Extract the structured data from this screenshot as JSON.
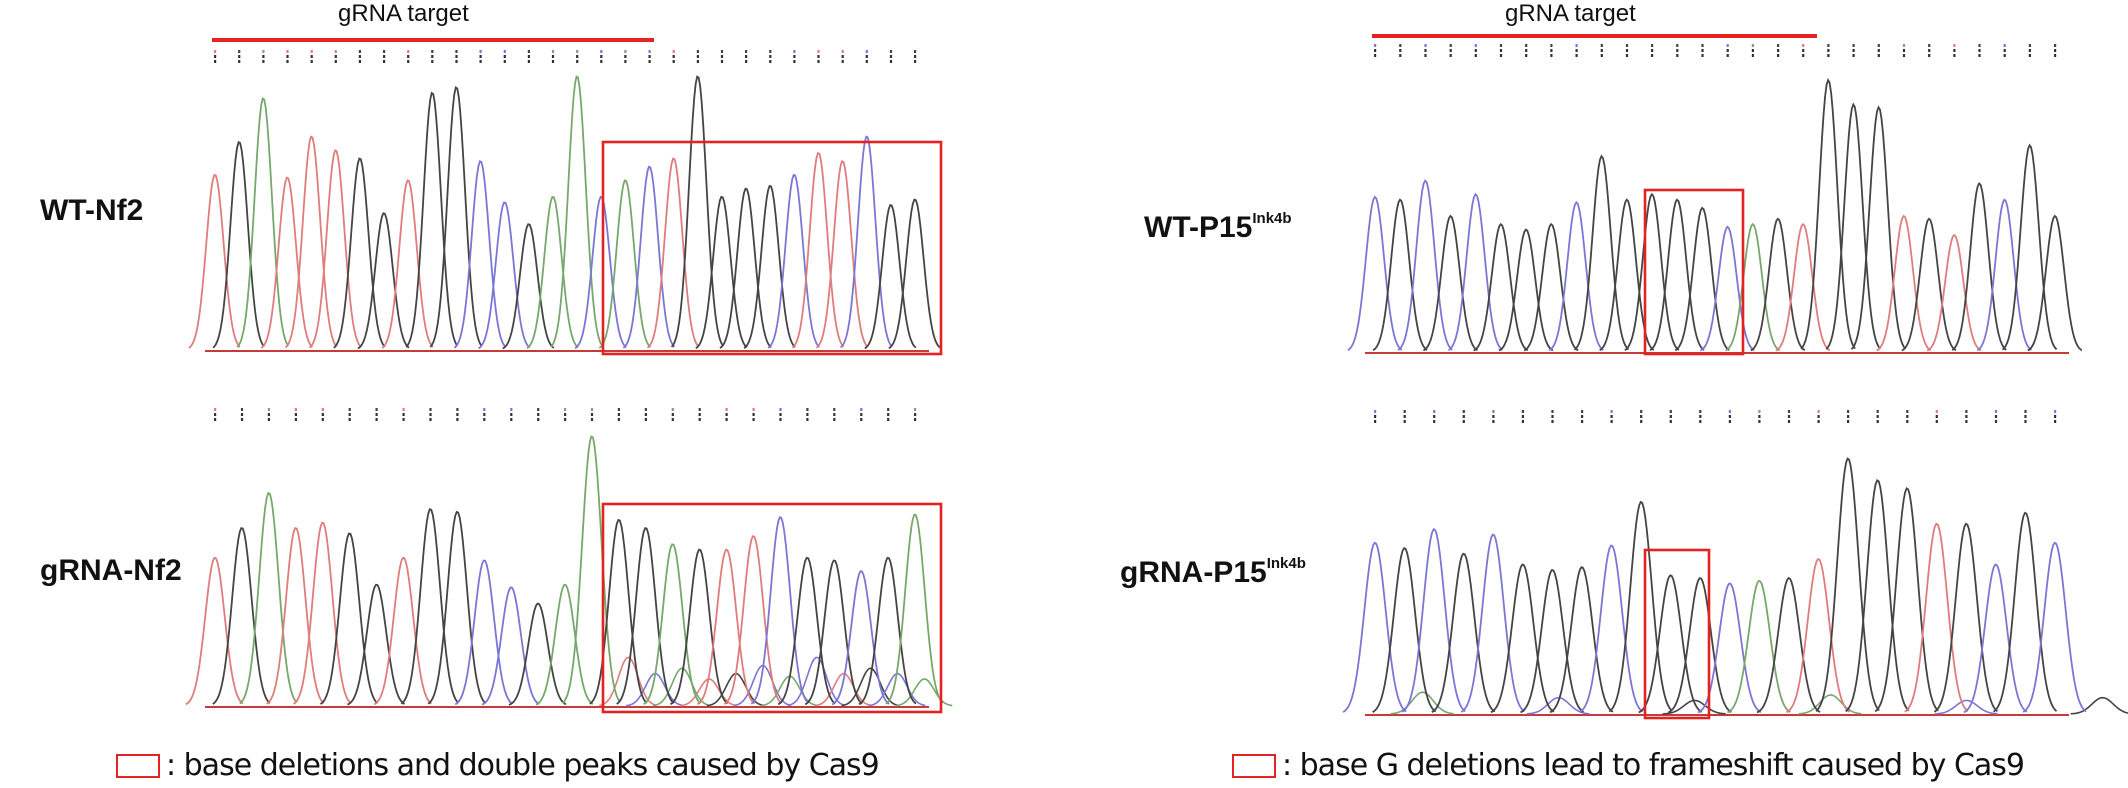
{
  "colors": {
    "highlight": "#e52222",
    "A": "#76a86c",
    "C": "#7b76d6",
    "G": "#444444",
    "T": "#e07c7c",
    "baseline": "#c63a3a"
  },
  "left": {
    "gRNA_label": "gRNA target",
    "trace_top": {
      "label_main": "WT-Nf2",
      "label_sup": "",
      "peaks": [
        [
          "T",
          0.64
        ],
        [
          "G",
          0.76
        ],
        [
          "A",
          0.92
        ],
        [
          "T",
          0.63
        ],
        [
          "T",
          0.78
        ],
        [
          "T",
          0.73
        ],
        [
          "G",
          0.7
        ],
        [
          "G",
          0.5
        ],
        [
          "T",
          0.62
        ],
        [
          "G",
          0.94
        ],
        [
          "G",
          0.96
        ],
        [
          "C",
          0.69
        ],
        [
          "C",
          0.54
        ],
        [
          "G",
          0.46
        ],
        [
          "A",
          0.56
        ],
        [
          "A",
          1.0
        ],
        [
          "C",
          0.56
        ],
        [
          "A",
          0.62
        ],
        [
          "C",
          0.67
        ],
        [
          "T",
          0.7
        ],
        [
          "G",
          1.0
        ],
        [
          "G",
          0.56
        ],
        [
          "G",
          0.59
        ],
        [
          "G",
          0.6
        ],
        [
          "C",
          0.64
        ],
        [
          "T",
          0.72
        ],
        [
          "T",
          0.69
        ],
        [
          "C",
          0.78
        ],
        [
          "G",
          0.53
        ],
        [
          "G",
          0.55
        ]
      ],
      "secondary": []
    },
    "trace_bottom": {
      "label_main": "gRNA-Nf2",
      "label_sup": "",
      "peaks": [
        [
          "T",
          0.55
        ],
        [
          "G",
          0.66
        ],
        [
          "A",
          0.79
        ],
        [
          "T",
          0.66
        ],
        [
          "T",
          0.68
        ],
        [
          "G",
          0.64
        ],
        [
          "G",
          0.45
        ],
        [
          "T",
          0.55
        ],
        [
          "G",
          0.73
        ],
        [
          "G",
          0.72
        ],
        [
          "C",
          0.54
        ],
        [
          "C",
          0.44
        ],
        [
          "G",
          0.38
        ],
        [
          "A",
          0.45
        ],
        [
          "A",
          1.0
        ],
        [
          "G",
          0.69
        ],
        [
          "G",
          0.66
        ],
        [
          "A",
          0.6
        ],
        [
          "G",
          0.58
        ],
        [
          "T",
          0.58
        ],
        [
          "T",
          0.63
        ],
        [
          "C",
          0.7
        ],
        [
          "G",
          0.55
        ],
        [
          "G",
          0.54
        ],
        [
          "C",
          0.5
        ],
        [
          "G",
          0.55
        ],
        [
          "A",
          0.71
        ]
      ],
      "secondary": [
        [
          "T",
          0.18
        ],
        [
          "C",
          0.12
        ],
        [
          "A",
          0.14
        ],
        [
          "T",
          0.1
        ],
        [
          "G",
          0.12
        ],
        [
          "C",
          0.15
        ],
        [
          "A",
          0.11
        ],
        [
          "C",
          0.18
        ],
        [
          "T",
          0.12
        ],
        [
          "G",
          0.14
        ],
        [
          "C",
          0.12
        ],
        [
          "A",
          0.1
        ]
      ]
    },
    "legend_text": ": base deletions and double peaks caused by Cas9"
  },
  "right": {
    "gRNA_label": "gRNA target",
    "trace_top": {
      "label_main": "WT-P15",
      "label_sup": "Ink4b",
      "peaks": [
        [
          "C",
          0.57
        ],
        [
          "G",
          0.56
        ],
        [
          "C",
          0.63
        ],
        [
          "G",
          0.5
        ],
        [
          "C",
          0.58
        ],
        [
          "G",
          0.47
        ],
        [
          "G",
          0.45
        ],
        [
          "G",
          0.47
        ],
        [
          "C",
          0.55
        ],
        [
          "G",
          0.72
        ],
        [
          "G",
          0.56
        ],
        [
          "G",
          0.58
        ],
        [
          "G",
          0.56
        ],
        [
          "G",
          0.53
        ],
        [
          "C",
          0.46
        ],
        [
          "A",
          0.47
        ],
        [
          "G",
          0.49
        ],
        [
          "T",
          0.47
        ],
        [
          "G",
          1.0
        ],
        [
          "G",
          0.91
        ],
        [
          "G",
          0.9
        ],
        [
          "T",
          0.5
        ],
        [
          "G",
          0.49
        ],
        [
          "T",
          0.43
        ],
        [
          "G",
          0.62
        ],
        [
          "C",
          0.56
        ],
        [
          "G",
          0.76
        ],
        [
          "G",
          0.5
        ]
      ],
      "secondary": []
    },
    "trace_bottom": {
      "label_main": "gRNA-P15",
      "label_sup": "Ink4b",
      "peaks": [
        [
          "C",
          0.63
        ],
        [
          "G",
          0.61
        ],
        [
          "C",
          0.68
        ],
        [
          "G",
          0.59
        ],
        [
          "C",
          0.66
        ],
        [
          "G",
          0.55
        ],
        [
          "G",
          0.53
        ],
        [
          "G",
          0.54
        ],
        [
          "C",
          0.62
        ],
        [
          "G",
          0.78
        ],
        [
          "G",
          0.51
        ],
        [
          "G",
          0.5
        ],
        [
          "C",
          0.48
        ],
        [
          "A",
          0.49
        ],
        [
          "G",
          0.5
        ],
        [
          "T",
          0.57
        ],
        [
          "G",
          0.94
        ],
        [
          "G",
          0.86
        ],
        [
          "G",
          0.83
        ],
        [
          "T",
          0.7
        ],
        [
          "G",
          0.7
        ],
        [
          "C",
          0.55
        ],
        [
          "G",
          0.74
        ],
        [
          "C",
          0.63
        ]
      ],
      "secondary": [
        [
          "A",
          0.08
        ],
        [
          "C",
          0.06
        ],
        [
          "G",
          0.05
        ],
        [
          "A",
          0.07
        ],
        [
          "C",
          0.05
        ],
        [
          "G",
          0.06
        ]
      ]
    },
    "legend_text": ": base G deletions lead to frameshift caused by Cas9"
  }
}
